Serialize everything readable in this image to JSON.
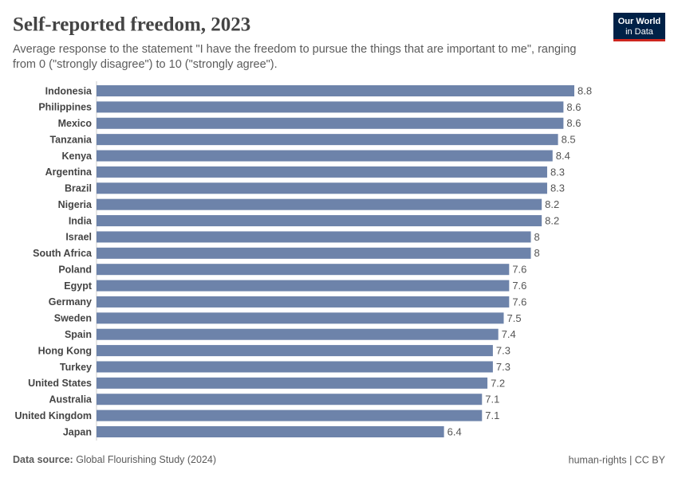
{
  "chart_data": {
    "type": "bar",
    "orientation": "horizontal",
    "title": "Self-reported freedom, 2023",
    "subtitle_lines": [
      "Average response to the statement \"I have the freedom to pursue the things that are important to me\", ranging",
      "from 0 (\"strongly disagree\") to 10 (\"strongly agree\")."
    ],
    "categories": [
      "Indonesia",
      "Philippines",
      "Mexico",
      "Tanzania",
      "Kenya",
      "Argentina",
      "Brazil",
      "Nigeria",
      "India",
      "Israel",
      "South Africa",
      "Poland",
      "Egypt",
      "Germany",
      "Sweden",
      "Spain",
      "Hong Kong",
      "Turkey",
      "United States",
      "Australia",
      "United Kingdom",
      "Japan"
    ],
    "values": [
      8.8,
      8.6,
      8.6,
      8.5,
      8.4,
      8.3,
      8.3,
      8.2,
      8.2,
      8,
      8,
      7.6,
      7.6,
      7.6,
      7.5,
      7.4,
      7.3,
      7.3,
      7.2,
      7.1,
      7.1,
      6.4
    ],
    "color": "#6d83aa",
    "xlim": [
      0,
      8.8
    ],
    "source_label": "Data source:",
    "source": "Global Flourishing Study (2024)",
    "footer_right": "human-rights | CC BY",
    "logo": [
      "Our World",
      "in Data"
    ]
  }
}
